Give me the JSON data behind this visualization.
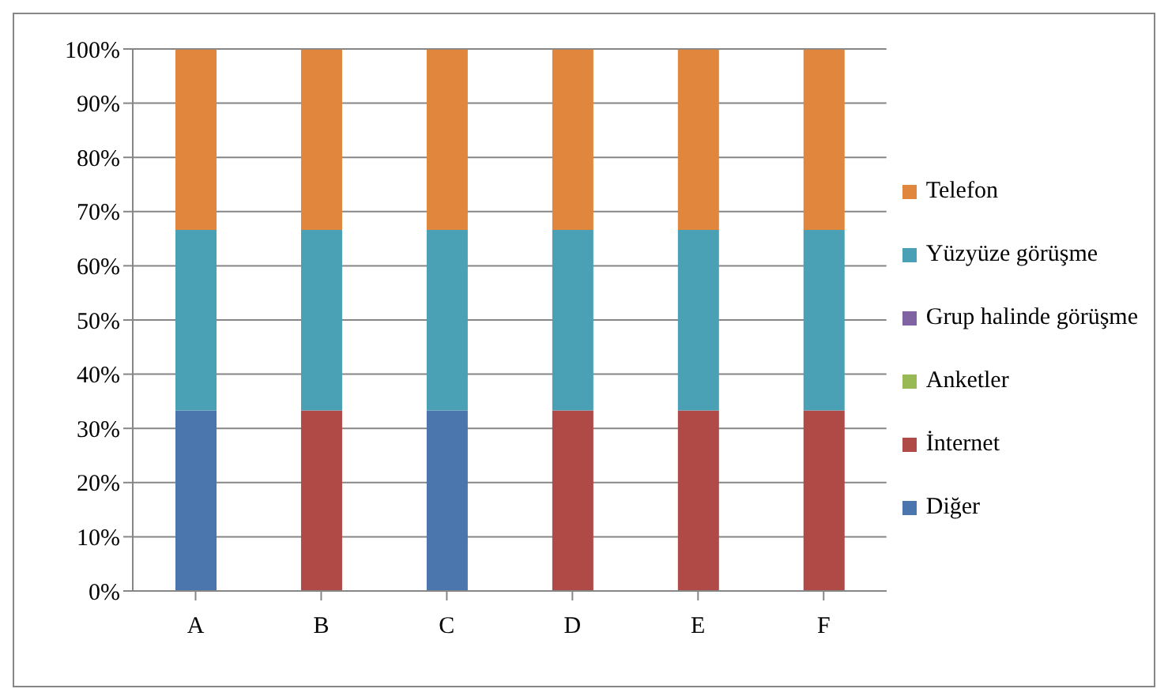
{
  "chart_data": {
    "type": "bar",
    "stacked": true,
    "categories": [
      "A",
      "B",
      "C",
      "D",
      "E",
      "F"
    ],
    "series": [
      {
        "name": "Diğer",
        "color": "#4a76ad",
        "values": [
          33.3,
          0,
          33.3,
          0,
          0,
          0
        ]
      },
      {
        "name": "İnternet",
        "color": "#b04a47",
        "values": [
          0,
          33.3,
          0,
          33.3,
          33.3,
          33.3
        ]
      },
      {
        "name": "Anketler",
        "color": "#98b954",
        "values": [
          0,
          0,
          0,
          0,
          0,
          0
        ]
      },
      {
        "name": "Grup halinde görüşme",
        "color": "#7f63a2",
        "values": [
          0,
          0,
          0,
          0,
          0,
          0
        ]
      },
      {
        "name": "Yüzyüze görüşme",
        "color": "#4aa0b5",
        "values": [
          33.3,
          33.3,
          33.3,
          33.3,
          33.3,
          33.3
        ]
      },
      {
        "name": "Telefon",
        "color": "#e0873d",
        "values": [
          33.3,
          33.3,
          33.3,
          33.3,
          33.3,
          33.3
        ]
      }
    ],
    "ylim": [
      0,
      100
    ],
    "yticks": [
      {
        "value": 0,
        "label": "0%"
      },
      {
        "value": 10,
        "label": "10%"
      },
      {
        "value": 20,
        "label": "20%"
      },
      {
        "value": 30,
        "label": "30%"
      },
      {
        "value": 40,
        "label": "40%"
      },
      {
        "value": 50,
        "label": "50%"
      },
      {
        "value": 60,
        "label": "60%"
      },
      {
        "value": 70,
        "label": "70%"
      },
      {
        "value": 80,
        "label": "80%"
      },
      {
        "value": 90,
        "label": "90%"
      },
      {
        "value": 100,
        "label": "100%"
      }
    ],
    "grid": "y",
    "legend": "right"
  }
}
